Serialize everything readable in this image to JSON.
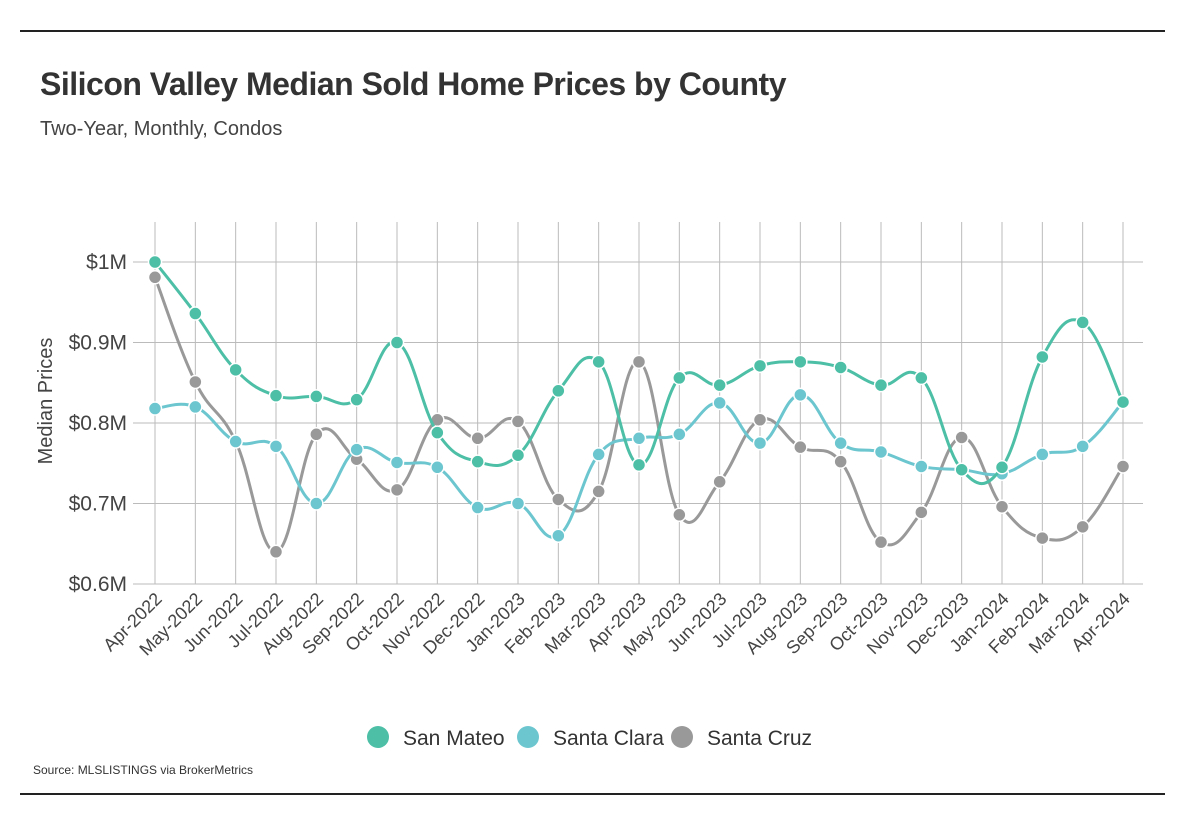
{
  "header": {
    "title": "Silicon Valley Median Sold Home Prices by County",
    "subtitle": "Two-Year, Monthly, Condos"
  },
  "footer": {
    "source": "Source:  MLSLISTINGS via BrokerMetrics"
  },
  "colors": {
    "san_mateo": "#4cbfa6",
    "santa_clara": "#6cc6cf",
    "santa_cruz": "#999999",
    "grid": "#bbbbbb"
  },
  "chart_data": {
    "type": "line",
    "ylabel": "Median Prices",
    "xlabel": "",
    "ylim": [
      0.6,
      1.0
    ],
    "yticks": [
      {
        "value": 1.0,
        "label": "$1M"
      },
      {
        "value": 0.9,
        "label": "$0.9M"
      },
      {
        "value": 0.8,
        "label": "$0.8M"
      },
      {
        "value": 0.7,
        "label": "$0.7M"
      },
      {
        "value": 0.6,
        "label": "$0.6M"
      }
    ],
    "grid": true,
    "legend": "bottom",
    "categories": [
      "Apr-2022",
      "May-2022",
      "Jun-2022",
      "Jul-2022",
      "Aug-2022",
      "Sep-2022",
      "Oct-2022",
      "Nov-2022",
      "Dec-2022",
      "Jan-2023",
      "Feb-2023",
      "Mar-2023",
      "Apr-2023",
      "May-2023",
      "Jun-2023",
      "Jul-2023",
      "Aug-2023",
      "Sep-2023",
      "Oct-2023",
      "Nov-2023",
      "Dec-2023",
      "Jan-2024",
      "Feb-2024",
      "Mar-2024",
      "Apr-2024"
    ],
    "series": [
      {
        "name": "San Mateo",
        "color": "#4cbfa6",
        "values": [
          1.0,
          0.936,
          0.866,
          0.834,
          0.833,
          0.829,
          0.9,
          0.788,
          0.752,
          0.76,
          0.84,
          0.876,
          0.748,
          0.856,
          0.847,
          0.871,
          0.876,
          0.869,
          0.847,
          0.856,
          0.742,
          0.745,
          0.882,
          0.925,
          0.826
        ]
      },
      {
        "name": "Santa Clara",
        "color": "#6cc6cf",
        "values": [
          0.818,
          0.82,
          0.777,
          0.771,
          0.7,
          0.767,
          0.751,
          0.745,
          0.695,
          0.7,
          0.66,
          0.761,
          0.781,
          0.786,
          0.825,
          0.775,
          0.835,
          0.775,
          0.764,
          0.746,
          0.742,
          0.737,
          0.761,
          0.771,
          0.826
        ]
      },
      {
        "name": "Santa Cruz",
        "color": "#999999",
        "values": [
          0.981,
          0.851,
          0.777,
          0.64,
          0.786,
          0.755,
          0.717,
          0.804,
          0.781,
          0.802,
          0.705,
          0.715,
          0.876,
          0.686,
          0.727,
          0.804,
          0.77,
          0.752,
          0.652,
          0.689,
          0.782,
          0.696,
          0.657,
          0.671,
          0.746
        ]
      }
    ]
  }
}
